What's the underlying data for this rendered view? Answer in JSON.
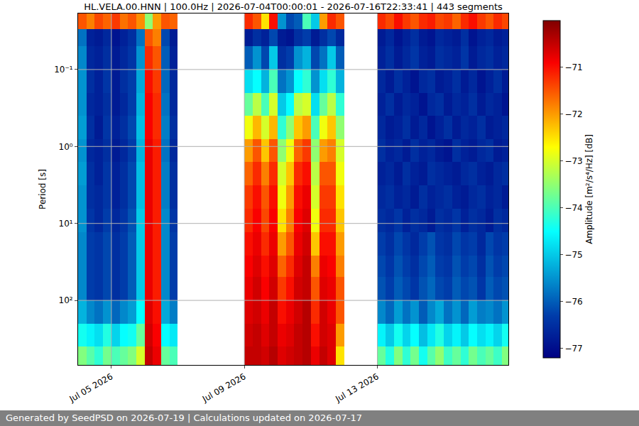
{
  "chart_data": {
    "type": "heatmap",
    "title": "HL.VELA.00.HNN | 100.0Hz | 2026-07-04T00:00:01 - 2026-07-16T22:33:41 | 443 segments",
    "ylabel": "Period [s]",
    "colorbar_label": "Amplitude [m²/s⁴/Hz] [dB]",
    "footer": "Generated by SeedPSD on 2026-07-19 | Calculations updated on 2026-07-17",
    "log": "y",
    "grid": true,
    "color": "Jet",
    "xlim": [
      "2026-07-04T00:00:01",
      "2026-07-16T22:33:41"
    ],
    "xticks": [
      {
        "value": "2026-07-05",
        "label": "Jul 05 2026"
      },
      {
        "value": "2026-07-09",
        "label": "Jul 09 2026"
      },
      {
        "value": "2026-07-13",
        "label": "Jul 13 2026"
      }
    ],
    "ylim": [
      690,
      0.0187
    ],
    "yticks": [
      {
        "value": 0.1,
        "label": "10⁻¹"
      },
      {
        "value": 1,
        "label": "10⁰"
      },
      {
        "value": 10,
        "label": "10¹"
      },
      {
        "value": 100,
        "label": "10²"
      }
    ],
    "zlim": [
      -77.2,
      -70.0
    ],
    "zticks": [
      {
        "value": -71,
        "label": "−71"
      },
      {
        "value": -72,
        "label": "−72"
      },
      {
        "value": -73,
        "label": "−73"
      },
      {
        "value": -74,
        "label": "−74"
      },
      {
        "value": -75,
        "label": "−75"
      },
      {
        "value": -76,
        "label": "−76"
      },
      {
        "value": -77,
        "label": "−77"
      }
    ],
    "x_edges": [
      "2026-07-04T00:00",
      "2026-07-04T06:00",
      "2026-07-04T12:00",
      "2026-07-04T18:00",
      "2026-07-05T00:00",
      "2026-07-05T06:00",
      "2026-07-05T12:00",
      "2026-07-05T18:00",
      "2026-07-06T00:00",
      "2026-07-06T06:00",
      "2026-07-06T12:00",
      "2026-07-06T18:00",
      "2026-07-07T00:00",
      "2026-07-07T06:00",
      "2026-07-07T12:00",
      "2026-07-07T18:00",
      "2026-07-08T00:00",
      "2026-07-08T06:00",
      "2026-07-08T12:00",
      "2026-07-08T18:00",
      "2026-07-09T00:00",
      "2026-07-09T06:00",
      "2026-07-09T12:00",
      "2026-07-09T18:00",
      "2026-07-10T00:00",
      "2026-07-10T06:00",
      "2026-07-10T12:00",
      "2026-07-10T18:00",
      "2026-07-11T00:00",
      "2026-07-11T06:00",
      "2026-07-11T12:00",
      "2026-07-11T18:00",
      "2026-07-12T00:00",
      "2026-07-12T06:00",
      "2026-07-12T12:00",
      "2026-07-12T18:00",
      "2026-07-13T00:00",
      "2026-07-13T06:00",
      "2026-07-13T12:00",
      "2026-07-13T18:00",
      "2026-07-14T00:00",
      "2026-07-14T06:00",
      "2026-07-14T12:00",
      "2026-07-14T18:00",
      "2026-07-15T00:00",
      "2026-07-15T06:00",
      "2026-07-15T12:00",
      "2026-07-15T18:00",
      "2026-07-16T00:00",
      "2026-07-16T06:00",
      "2026-07-16T12:00",
      "2026-07-16T18:00",
      "2026-07-17T00:00"
    ],
    "y_edges": [
      0.0187,
      0.03,
      0.05,
      0.1,
      0.2,
      0.4,
      0.8,
      1.6,
      3.2,
      6.4,
      13,
      26,
      50,
      100,
      200,
      400,
      690
    ],
    "cells": [
      [
        -71.5,
        -71.8,
        -71.4,
        -71.6,
        -71.3,
        -71.7,
        -71.5,
        -71.9,
        -73.5,
        -72.0,
        -71.5,
        -71.6,
        null,
        null,
        null,
        null,
        null,
        null,
        null,
        null,
        -71.2,
        -71.5,
        -72.5,
        -71.0,
        -75.5,
        -76.2,
        -76.0,
        -74.0,
        -75.0,
        -72.0,
        -71.2,
        -71.5,
        null,
        null,
        null,
        null,
        -71.2,
        -71.4,
        -71.0,
        -71.3,
        -71.5,
        -71.2,
        -71.1,
        -71.4,
        -71.3,
        -71.6,
        -71.2,
        -71.0,
        -71.3,
        -71.5,
        -71.2,
        -71.4
      ],
      [
        -75.8,
        -76.7,
        -76.8,
        -76.6,
        -76.9,
        -76.7,
        -76.5,
        -75.8,
        -71.5,
        -71.8,
        -76.2,
        -76.8,
        null,
        null,
        null,
        null,
        null,
        null,
        null,
        null,
        -76.8,
        -76.5,
        -76.7,
        -76.2,
        -76.8,
        -76.9,
        -76.5,
        -76.3,
        -76.8,
        -76.5,
        -76.2,
        -76.6,
        null,
        null,
        null,
        null,
        -76.8,
        -76.6,
        -76.9,
        -76.7,
        -76.5,
        -76.8,
        -76.9,
        -76.6,
        -76.7,
        -76.8,
        -76.5,
        -76.9,
        -76.7,
        -76.6,
        -76.8,
        -76.7
      ],
      [
        -75.6,
        -76.6,
        -76.7,
        -76.5,
        -76.8,
        -76.6,
        -76.4,
        -75.5,
        -71.2,
        -71.5,
        -76.0,
        -76.7,
        null,
        null,
        null,
        null,
        null,
        null,
        null,
        null,
        -76.0,
        -75.5,
        -76.2,
        -75.0,
        -76.5,
        -76.3,
        -75.5,
        -75.2,
        -76.2,
        -75.8,
        -75.0,
        -76.0,
        null,
        null,
        null,
        null,
        -76.7,
        -76.5,
        -76.8,
        -76.6,
        -76.4,
        -76.7,
        -76.8,
        -76.5,
        -76.6,
        -76.7,
        -76.4,
        -76.8,
        -76.6,
        -76.5,
        -76.7,
        -76.6
      ],
      [
        -75.5,
        -76.5,
        -76.7,
        -76.4,
        -76.8,
        -76.5,
        -76.3,
        -75.3,
        -71.0,
        -71.3,
        -75.9,
        -76.6,
        null,
        null,
        null,
        null,
        null,
        null,
        null,
        null,
        -74.8,
        -74.5,
        -75.2,
        -74.0,
        -75.8,
        -75.5,
        -74.5,
        -74.2,
        -75.5,
        -74.8,
        -74.2,
        -75.2,
        null,
        null,
        null,
        null,
        -76.6,
        -76.8,
        -76.5,
        -76.7,
        -76.9,
        -76.6,
        -76.5,
        -76.8,
        -76.7,
        -76.5,
        -76.8,
        -76.6,
        -76.9,
        -76.7,
        -76.5,
        -76.8
      ],
      [
        -75.5,
        -76.6,
        -76.7,
        -76.5,
        -76.8,
        -76.6,
        -76.3,
        -75.2,
        -70.9,
        -71.2,
        -75.8,
        -76.6,
        null,
        null,
        null,
        null,
        null,
        null,
        null,
        null,
        -73.8,
        -73.2,
        -74.0,
        -73.0,
        -75.0,
        -74.5,
        -73.2,
        -73.0,
        -74.8,
        -73.8,
        -73.2,
        -74.2,
        null,
        null,
        null,
        null,
        -76.7,
        -76.5,
        -76.8,
        -76.6,
        -76.7,
        -76.9,
        -76.6,
        -76.5,
        -76.8,
        -76.6,
        -76.7,
        -76.5,
        -76.8,
        -76.6,
        -76.7,
        -76.9
      ],
      [
        -75.4,
        -76.5,
        -76.8,
        -76.4,
        -76.7,
        -76.5,
        -76.2,
        -75.1,
        -70.9,
        -71.2,
        -75.7,
        -76.5,
        null,
        null,
        null,
        null,
        null,
        null,
        null,
        null,
        -72.8,
        -72.2,
        -73.0,
        -72.2,
        -74.2,
        -73.5,
        -72.3,
        -72.0,
        -74.0,
        -72.8,
        -72.3,
        -73.5,
        null,
        null,
        null,
        null,
        -76.6,
        -76.8,
        -76.7,
        -76.5,
        -76.8,
        -76.6,
        -76.9,
        -76.7,
        -76.5,
        -76.8,
        -76.6,
        -76.7,
        -76.5,
        -76.8,
        -76.7,
        -76.6
      ],
      [
        -75.5,
        -76.6,
        -76.7,
        -76.5,
        -76.8,
        -76.6,
        -76.3,
        -75.2,
        -70.8,
        -71.1,
        -75.8,
        -76.6,
        null,
        null,
        null,
        null,
        null,
        null,
        null,
        null,
        -72.0,
        -71.5,
        -72.3,
        -71.5,
        -73.5,
        -72.8,
        -71.6,
        -71.3,
        -73.5,
        -72.0,
        -71.8,
        -73.0,
        null,
        null,
        null,
        null,
        -76.5,
        -76.7,
        -76.6,
        -76.8,
        -76.5,
        -76.7,
        -76.6,
        -76.8,
        -76.9,
        -76.5,
        -76.7,
        -76.8,
        -76.6,
        -76.5,
        -76.8,
        -76.7
      ],
      [
        -75.4,
        -76.5,
        -76.7,
        -76.4,
        -76.7,
        -76.5,
        -76.2,
        -75.1,
        -70.8,
        -71.1,
        -75.7,
        -76.5,
        null,
        null,
        null,
        null,
        null,
        null,
        null,
        null,
        -71.6,
        -71.2,
        -71.8,
        -71.2,
        -73.0,
        -72.3,
        -71.2,
        -71.0,
        -73.2,
        -71.5,
        -71.5,
        -72.8,
        null,
        null,
        null,
        null,
        -76.7,
        -76.6,
        -76.8,
        -76.5,
        -76.7,
        -76.8,
        -76.5,
        -76.6,
        -76.7,
        -76.8,
        -76.6,
        -76.5,
        -76.7,
        -76.8,
        -76.6,
        -76.5
      ],
      [
        -75.5,
        -76.5,
        -76.6,
        -76.4,
        -76.7,
        -76.5,
        -76.2,
        -75.1,
        -70.8,
        -71.1,
        -75.7,
        -76.5,
        null,
        null,
        null,
        null,
        null,
        null,
        null,
        null,
        -71.3,
        -71.0,
        -71.5,
        -71.0,
        -72.8,
        -72.0,
        -71.0,
        -70.8,
        -73.0,
        -71.3,
        -71.3,
        -72.5,
        null,
        null,
        null,
        null,
        -76.6,
        -76.5,
        -76.7,
        -76.6,
        -76.8,
        -76.5,
        -76.7,
        -76.6,
        -76.5,
        -76.7,
        -76.8,
        -76.6,
        -76.5,
        -76.7,
        -76.6,
        -76.8
      ],
      [
        -75.5,
        -76.4,
        -76.6,
        -76.3,
        -76.6,
        -76.4,
        -76.1,
        -75.0,
        -70.8,
        -71.1,
        -75.6,
        -76.4,
        null,
        null,
        null,
        null,
        null,
        null,
        null,
        null,
        -71.2,
        -70.9,
        -71.4,
        -70.9,
        -72.5,
        -71.8,
        -70.9,
        -70.7,
        -72.8,
        -71.2,
        -71.2,
        -72.3,
        null,
        null,
        null,
        null,
        -76.5,
        -76.6,
        -76.4,
        -76.7,
        -76.5,
        -76.6,
        -76.8,
        -76.5,
        -76.6,
        -76.4,
        -76.7,
        -76.5,
        -76.6,
        -76.8,
        -76.5,
        -76.6
      ],
      [
        -75.6,
        -76.3,
        -76.4,
        -76.2,
        -76.5,
        -76.3,
        -76.0,
        -75.0,
        -70.8,
        -71.1,
        -75.6,
        -76.3,
        null,
        null,
        null,
        null,
        null,
        null,
        null,
        null,
        -71.0,
        -70.8,
        -71.2,
        -70.8,
        -72.0,
        -71.5,
        -70.8,
        -70.6,
        -72.3,
        -71.0,
        -71.0,
        -72.0,
        null,
        null,
        null,
        null,
        -76.3,
        -76.5,
        -76.2,
        -76.4,
        -76.6,
        -76.3,
        -76.1,
        -76.4,
        -76.5,
        -76.2,
        -76.4,
        -76.3,
        -76.6,
        -76.2,
        -76.4,
        -76.3
      ],
      [
        -75.6,
        -76.3,
        -76.4,
        -76.2,
        -76.5,
        -76.3,
        -76.0,
        -75.0,
        -70.8,
        -71.1,
        -75.6,
        -76.3,
        null,
        null,
        null,
        null,
        null,
        null,
        null,
        null,
        -70.9,
        -70.7,
        -71.0,
        -70.7,
        -71.6,
        -71.2,
        -70.7,
        -70.5,
        -71.8,
        -70.8,
        -70.9,
        -71.8,
        null,
        null,
        null,
        null,
        -76.2,
        -76.4,
        -76.1,
        -76.3,
        -76.5,
        -76.2,
        -76.0,
        -76.3,
        -76.4,
        -76.1,
        -76.3,
        -76.2,
        -76.5,
        -76.1,
        -76.3,
        -76.2
      ],
      [
        -75.6,
        -76.3,
        -76.4,
        -76.2,
        -76.5,
        -76.3,
        -76.0,
        -75.0,
        -70.8,
        -71.1,
        -75.6,
        -76.3,
        null,
        null,
        null,
        null,
        null,
        null,
        null,
        null,
        -70.8,
        -70.6,
        -70.9,
        -70.6,
        -71.3,
        -71.0,
        -70.6,
        -70.5,
        -71.5,
        -70.7,
        -70.8,
        -71.5,
        null,
        null,
        null,
        null,
        -76.1,
        -76.3,
        -76.0,
        -76.2,
        -76.4,
        -76.1,
        -75.9,
        -76.2,
        -76.3,
        -76.0,
        -76.2,
        -76.1,
        -76.4,
        -76.0,
        -76.2,
        -76.1
      ],
      [
        -75.2,
        -75.6,
        -75.8,
        -75.5,
        -75.9,
        -75.6,
        -75.4,
        -74.5,
        -70.7,
        -71.0,
        -75.3,
        -75.7,
        null,
        null,
        null,
        null,
        null,
        null,
        null,
        null,
        -70.7,
        -70.6,
        -70.8,
        -70.5,
        -71.0,
        -70.8,
        -70.6,
        -70.4,
        -71.2,
        -70.6,
        -70.8,
        -71.5,
        null,
        null,
        null,
        null,
        -75.6,
        -75.9,
        -75.4,
        -75.8,
        -75.5,
        -76.0,
        -75.6,
        -75.3,
        -75.8,
        -75.5,
        -75.9,
        -75.4,
        -75.7,
        -75.6,
        -75.8,
        -75.5
      ],
      [
        -74.4,
        -74.6,
        -74.8,
        -74.3,
        -74.9,
        -74.5,
        -74.4,
        -73.8,
        -70.6,
        -70.9,
        -74.5,
        -74.7,
        null,
        null,
        null,
        null,
        null,
        null,
        null,
        null,
        -70.6,
        -70.5,
        -70.7,
        -70.5,
        -70.8,
        -70.7,
        -70.5,
        -70.4,
        -71.0,
        -70.6,
        -70.7,
        -72.0,
        null,
        null,
        null,
        null,
        -74.6,
        -75.0,
        -74.4,
        -74.9,
        -74.5,
        -75.1,
        -74.7,
        -74.3,
        -74.9,
        -74.6,
        -75.0,
        -74.5,
        -74.8,
        -74.6,
        -74.9,
        -74.4
      ],
      [
        -73.6,
        -73.9,
        -74.2,
        -73.7,
        -74.0,
        -73.8,
        -73.6,
        -73.0,
        -70.5,
        -70.8,
        -73.8,
        -74.0,
        null,
        null,
        null,
        null,
        null,
        null,
        null,
        null,
        -70.5,
        -70.5,
        -70.6,
        -70.4,
        -70.7,
        -70.6,
        -70.5,
        -70.4,
        -70.8,
        -70.5,
        -70.7,
        -72.5,
        null,
        null,
        null,
        null,
        -73.8,
        -74.3,
        -73.6,
        -74.2,
        -73.7,
        -74.4,
        -73.9,
        -73.5,
        -74.1,
        -73.8,
        -74.2,
        -73.7,
        -74.0,
        -73.8,
        -74.1,
        -73.6
      ]
    ]
  }
}
